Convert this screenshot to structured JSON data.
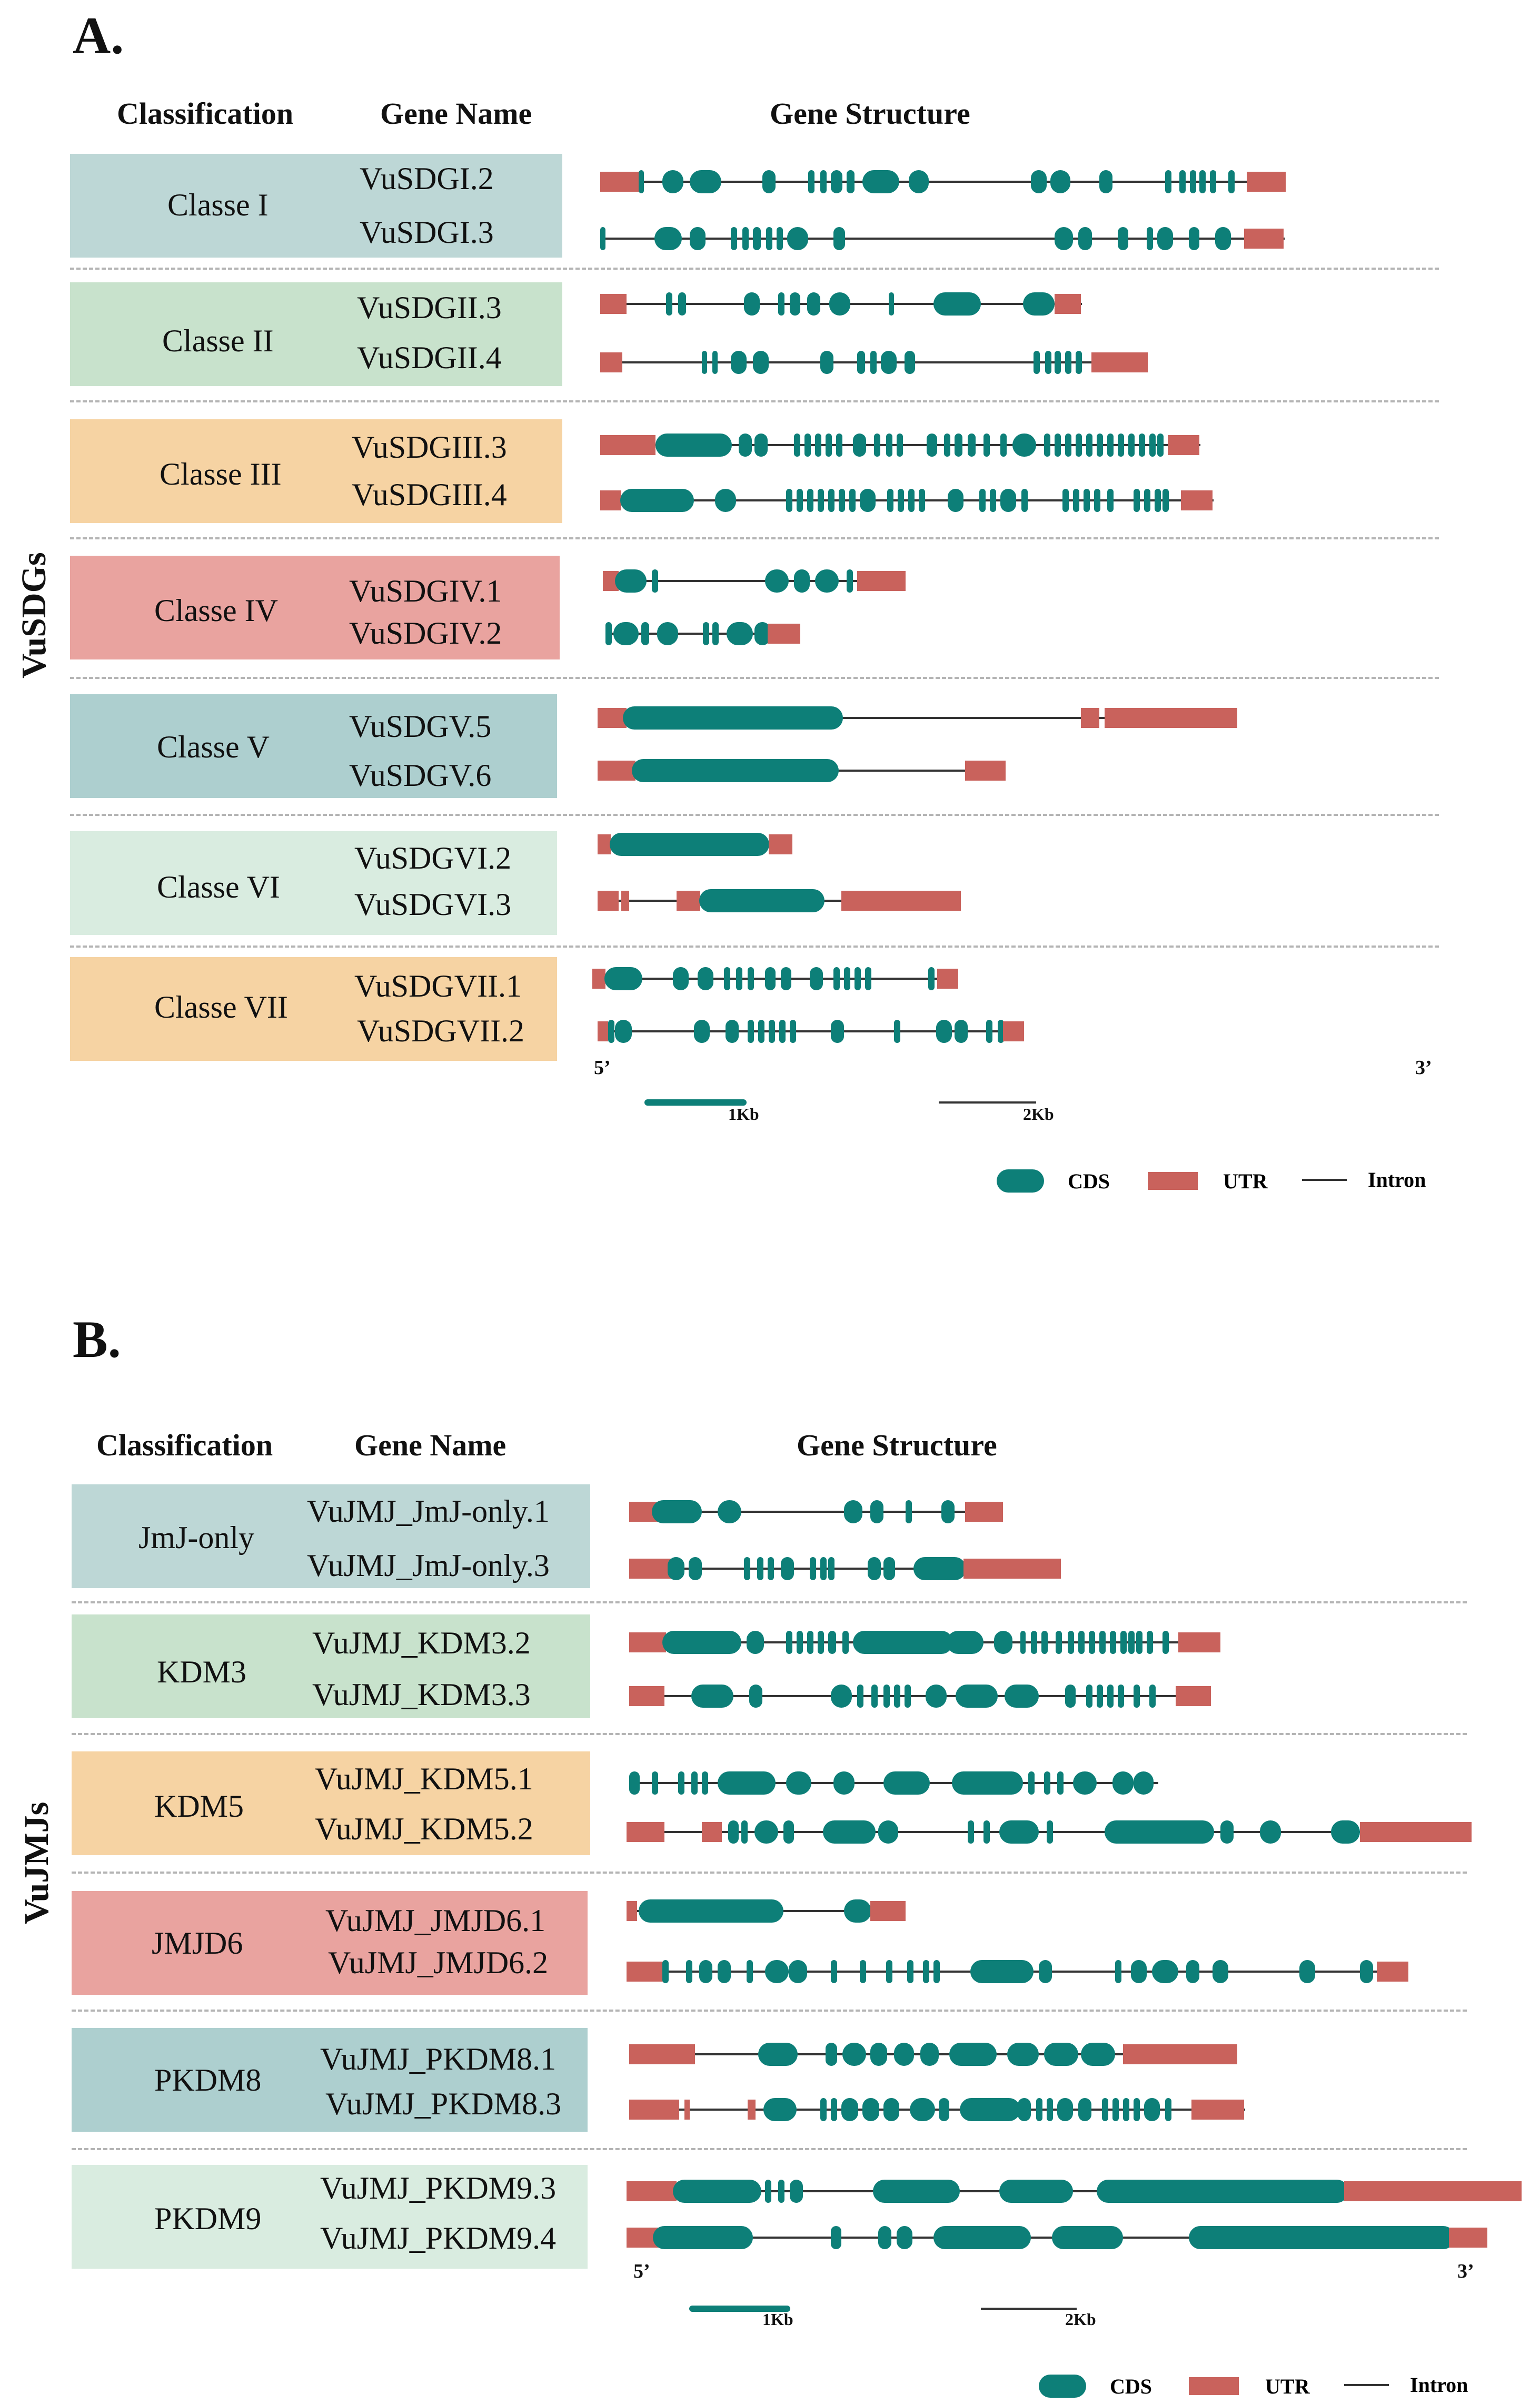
{
  "colors": {
    "cds": "#0d7f78",
    "utr": "#c9625c",
    "intron": "#333333",
    "scale_bar_1kb": "#0d7f78",
    "box_blue": "#bdd7d6",
    "box_green": "#c8e2cc",
    "box_orange": "#f6d3a3",
    "box_red": "#e9a39f",
    "box_slate": "#adcfcf",
    "box_mint": "#d9ece0"
  },
  "panel_a": {
    "letter": "A.",
    "side_label": "VuSDGs",
    "headers": {
      "classification": "Classification",
      "gene_name": "Gene Name",
      "gene_structure": "Gene Structure"
    },
    "classes": [
      {
        "label": "Classe I",
        "color": "box_blue",
        "genes": [
          "VuSDGI.2",
          "VuSDGI.3"
        ]
      },
      {
        "label": "Classe II",
        "color": "box_green",
        "genes": [
          "VuSDGII.3",
          "VuSDGII.4"
        ]
      },
      {
        "label": "Classe III",
        "color": "box_orange",
        "genes": [
          "VuSDGIII.3",
          "VuSDGIII.4"
        ]
      },
      {
        "label": "Classe IV",
        "color": "box_red",
        "genes": [
          "VuSDGIV.1",
          "VuSDGIV.2"
        ]
      },
      {
        "label": "Classe V",
        "color": "box_slate",
        "genes": [
          "VuSDGV.5",
          "VuSDGV.6"
        ]
      },
      {
        "label": "Classe VI",
        "color": "box_mint",
        "genes": [
          "VuSDGVI.2",
          "VuSDGVI.3"
        ]
      },
      {
        "label": "Classe VII",
        "color": "box_orange",
        "genes": [
          "VuSDGVII.1",
          "VuSDGVII.2"
        ]
      }
    ],
    "five_prime": "5’",
    "three_prime": "3’",
    "scale_1kb": "1Kb",
    "scale_2kb": "2Kb",
    "legend": {
      "cds": "CDS",
      "utr": "UTR",
      "intron": "Intron"
    }
  },
  "panel_b": {
    "letter": "B.",
    "side_label": "VuJMJs",
    "headers": {
      "classification": "Classification",
      "gene_name": "Gene Name",
      "gene_structure": "Gene Structure"
    },
    "classes": [
      {
        "label": "JmJ-only",
        "color": "box_blue",
        "genes": [
          "VuJMJ_JmJ-only.1",
          "VuJMJ_JmJ-only.3"
        ]
      },
      {
        "label": "KDM3",
        "color": "box_green",
        "genes": [
          "VuJMJ_KDM3.2",
          "VuJMJ_KDM3.3"
        ]
      },
      {
        "label": "KDM5",
        "color": "box_orange",
        "genes": [
          "VuJMJ_KDM5.1",
          "VuJMJ_KDM5.2"
        ]
      },
      {
        "label": "JMJD6",
        "color": "box_red",
        "genes": [
          "VuJMJ_JMJD6.1",
          "VuJMJ_JMJD6.2"
        ]
      },
      {
        "label": "PKDM8",
        "color": "box_slate",
        "genes": [
          "VuJMJ_PKDM8.1",
          "VuJMJ_PKDM8.3"
        ]
      },
      {
        "label": "PKDM9",
        "color": "box_mint",
        "genes": [
          "VuJMJ_PKDM9.3",
          "VuJMJ_PKDM9.4"
        ]
      }
    ],
    "five_prime": "5’",
    "three_prime": "3’",
    "scale_1kb": "1Kb",
    "scale_2kb": "2Kb",
    "legend": {
      "cds": "CDS",
      "utr": "UTR",
      "intron": "Intron"
    }
  }
}
